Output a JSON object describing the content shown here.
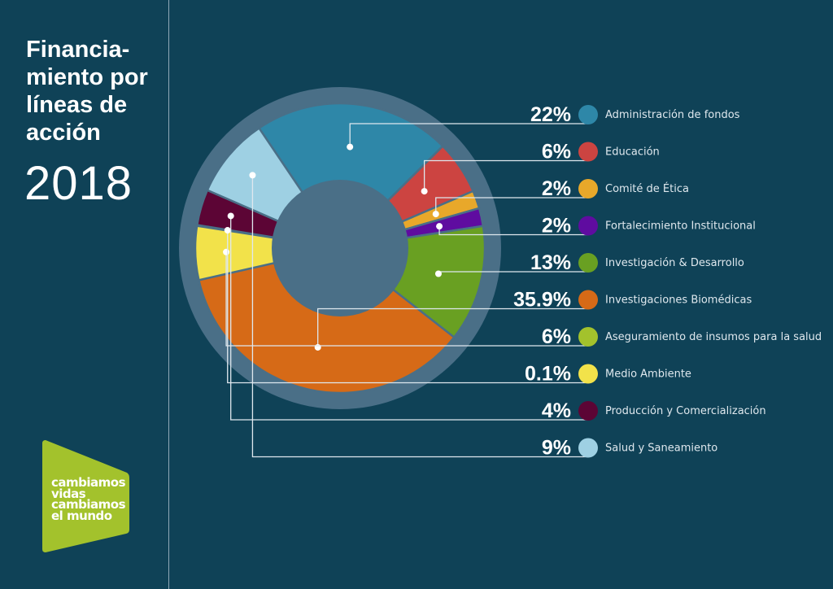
{
  "header": {
    "title": "Financia-\nmiento por\nlíneas de\nacción",
    "year": "2018"
  },
  "logo": {
    "text": "cambiamos\nvidas\ncambiamos\nel mundo",
    "color": "#a3c22c"
  },
  "colors": {
    "background": "#0f4257",
    "ring": "#4a6f87"
  },
  "chart_data": {
    "type": "pie",
    "variant": "donut",
    "title": "Financiamiento por líneas de acción 2018",
    "legend_placement": "right",
    "items": [
      {
        "label": "Administración de fondos",
        "pct_label": "22%",
        "value": 22,
        "color": "#2e87a8",
        "slice_color": "#2e87a8"
      },
      {
        "label": "Educación",
        "pct_label": "6%",
        "value": 6,
        "color": "#cc4441",
        "slice_color": "#cc4441"
      },
      {
        "label": "Comité de Ética",
        "pct_label": "2%",
        "value": 2,
        "color": "#e8a82a",
        "slice_color": "#e8a82a"
      },
      {
        "label": "Fortalecimiento Institucional",
        "pct_label": "2%",
        "value": 2,
        "color": "#5f0ca0",
        "slice_color": "#5f0ca0"
      },
      {
        "label": "Investigación & Desarrollo",
        "pct_label": "13%",
        "value": 13,
        "color": "#69a022",
        "slice_color": "#69a022"
      },
      {
        "label": "Investigaciones Biomédicas",
        "pct_label": "35.9%",
        "value": 35.9,
        "color": "#d66a17",
        "slice_color": "#d66a17"
      },
      {
        "label": "Aseguramiento de insumos para la salud",
        "pct_label": "6%",
        "value": 6,
        "color": "#a3c22c",
        "slice_color": "#f2e24a"
      },
      {
        "label": "Medio Ambiente",
        "pct_label": "0.1%",
        "value": 0.1,
        "color": "#f2e24a",
        "slice_color": "#8cba2e"
      },
      {
        "label": "Producción y Comercialización",
        "pct_label": "4%",
        "value": 4,
        "color": "#5c0535",
        "slice_color": "#5c0535"
      },
      {
        "label": "Salud y Saneamiento",
        "pct_label": "9%",
        "value": 9,
        "color": "#9ed0e3",
        "slice_color": "#9ed0e3"
      }
    ]
  }
}
